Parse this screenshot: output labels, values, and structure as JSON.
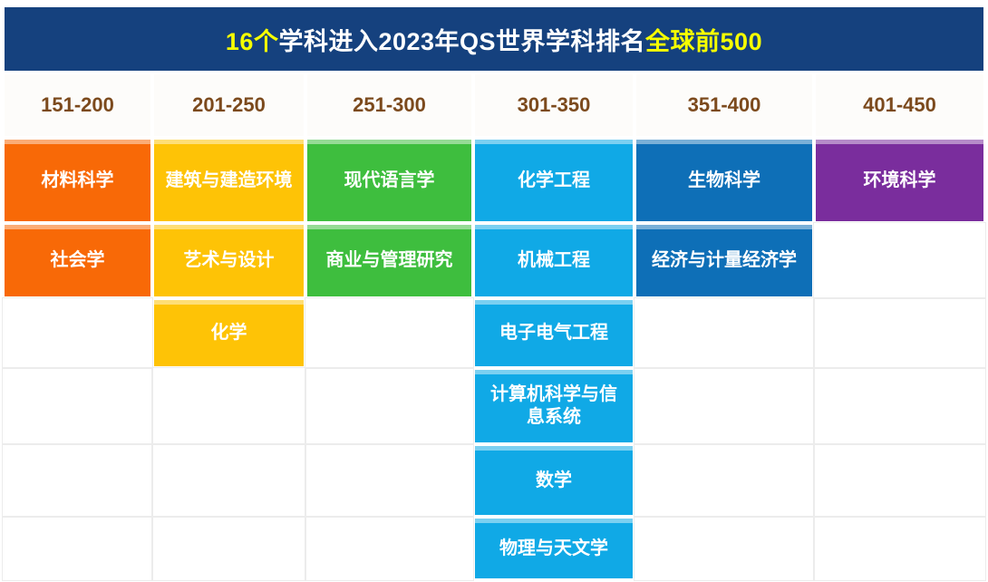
{
  "title": {
    "highlight_start": "16个",
    "middle": "学科进入2023年QS世界学科排名",
    "highlight_end": "全球前500"
  },
  "colors": {
    "banner_bg": "#15417e",
    "title_highlight": "#f6ff00",
    "title_text": "#ffffff",
    "header_text": "#7c4a1d",
    "grid_line": "#ececec",
    "cell_text": "#ffffff"
  },
  "chart_data": {
    "type": "table",
    "title": "16个学科进入2023年QS世界学科排名全球前500",
    "row_count": 6,
    "columns": [
      {
        "range": "151-200",
        "color": "#f86907",
        "subjects": [
          "材料科学",
          "社会学"
        ]
      },
      {
        "range": "201-250",
        "color": "#fec306",
        "subjects": [
          "建筑与建造环境",
          "艺术与设计",
          "化学"
        ]
      },
      {
        "range": "251-300",
        "color": "#3ebe3e",
        "subjects": [
          "现代语言学",
          "商业与管理研究"
        ]
      },
      {
        "range": "301-350",
        "color": "#10a9e6",
        "subjects": [
          "化学工程",
          "机械工程",
          "电子电气工程",
          "计算机科学与信息系统",
          "数学",
          "物理与天文学"
        ]
      },
      {
        "range": "351-400",
        "color": "#0e6fb7",
        "subjects": [
          "生物科学",
          "经济与计量经济学"
        ]
      },
      {
        "range": "401-450",
        "color": "#7a2d9d",
        "subjects": [
          "环境科学"
        ]
      }
    ]
  }
}
